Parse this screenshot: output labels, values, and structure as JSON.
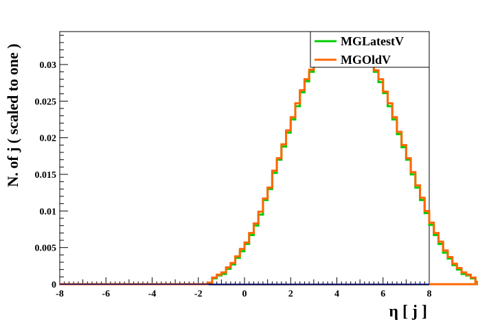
{
  "chart_data": {
    "type": "line",
    "style": "step-histogram",
    "xlabel": "η [ j ]",
    "ylabel": "N. of j ( scaled to one )",
    "xlim": [
      -8,
      8
    ],
    "ylim": [
      0,
      0.0345
    ],
    "x_ticks": [
      -8,
      -6,
      -4,
      -2,
      0,
      2,
      4,
      6,
      8
    ],
    "x_tick_labels": [
      "-8",
      "-6",
      "-4",
      "-2",
      "0",
      "2",
      "4",
      "6",
      "8"
    ],
    "y_ticks": [
      0,
      0.005,
      0.01,
      0.015,
      0.02,
      0.025,
      0.03
    ],
    "y_tick_labels": [
      "0",
      "0.005",
      "0.01",
      "0.015",
      "0.02",
      "0.025",
      "0.03"
    ],
    "bin_width": 0.2,
    "bin_range": [
      -8,
      8
    ],
    "legend_position": "top-right",
    "series": [
      {
        "name": "MGLatestV",
        "color": "#00cc00",
        "values": [
          0,
          0,
          0,
          0,
          0,
          0,
          0,
          0,
          0,
          0,
          0,
          0,
          0,
          0,
          0,
          0,
          0,
          0,
          0,
          0,
          0,
          0,
          0,
          0,
          0,
          0,
          0,
          0,
          0,
          0,
          0,
          0,
          0.0002,
          0.0008,
          0.0012,
          0.0014,
          0.0021,
          0.0027,
          0.0036,
          0.0045,
          0.0055,
          0.0067,
          0.008,
          0.0095,
          0.0115,
          0.013,
          0.0152,
          0.017,
          0.0188,
          0.0207,
          0.0225,
          0.0243,
          0.0262,
          0.0277,
          0.029,
          0.0302,
          0.0312,
          0.0318,
          0.0325,
          0.0328,
          0.0325,
          0.0322,
          0.0322,
          0.0328,
          0.0325,
          0.0318,
          0.0312,
          0.0303,
          0.029,
          0.0276,
          0.0261,
          0.0243,
          0.0225,
          0.0205,
          0.0187,
          0.017,
          0.015,
          0.0132,
          0.0115,
          0.0097,
          0.0081,
          0.0067,
          0.0055,
          0.0043,
          0.0035,
          0.0026,
          0.002,
          0.0014,
          0.0012,
          0.0008,
          0.0003,
          0,
          0,
          0,
          0,
          0,
          0,
          0,
          0,
          0,
          0,
          0,
          0,
          0,
          0,
          0,
          0,
          0,
          0,
          0,
          0,
          0,
          0,
          0,
          0,
          0,
          0,
          0,
          0,
          0,
          0,
          0,
          0,
          0
        ]
      },
      {
        "name": "MGOldV",
        "color": "#ff6600",
        "values": [
          0,
          0,
          0,
          0,
          0,
          0,
          0,
          0,
          0,
          0,
          0,
          0,
          0,
          0,
          0,
          0,
          0,
          0,
          0,
          0,
          0,
          0,
          0,
          0,
          0,
          0,
          0,
          0,
          0,
          0,
          0,
          0,
          0.0002,
          0.0009,
          0.0013,
          0.0016,
          0.0023,
          0.0029,
          0.0038,
          0.0048,
          0.0057,
          0.007,
          0.0083,
          0.0099,
          0.0117,
          0.0132,
          0.0155,
          0.0172,
          0.0191,
          0.021,
          0.0228,
          0.0247,
          0.0265,
          0.028,
          0.0293,
          0.0306,
          0.0315,
          0.0322,
          0.0328,
          0.033,
          0.0328,
          0.0325,
          0.033,
          0.0332,
          0.0328,
          0.0322,
          0.0315,
          0.0305,
          0.0292,
          0.028,
          0.0263,
          0.0247,
          0.0228,
          0.0208,
          0.019,
          0.0172,
          0.0153,
          0.0135,
          0.0118,
          0.01,
          0.0084,
          0.007,
          0.0058,
          0.0046,
          0.0037,
          0.0028,
          0.0022,
          0.0016,
          0.0013,
          0.0009,
          0.0003,
          0,
          0,
          0,
          0,
          0,
          0,
          0,
          0,
          0,
          0,
          0,
          0,
          0,
          0,
          0,
          0,
          0,
          0,
          0,
          0,
          0,
          0,
          0,
          0,
          0,
          0,
          0,
          0,
          0,
          0,
          0,
          0,
          0
        ]
      }
    ]
  }
}
